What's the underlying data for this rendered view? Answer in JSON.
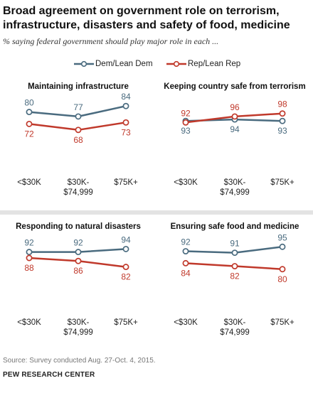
{
  "header": {
    "title": "Broad agreement on government role on terrorism, infrastructure, disasters and safety of food, medicine",
    "subtitle": "% saying federal government should play major role in each ..."
  },
  "legend": {
    "dem_label": "Dem/Lean Dem",
    "rep_label": "Rep/Lean Rep"
  },
  "colors": {
    "dem": "#4a6b7f",
    "rep": "#c0392b"
  },
  "chart_data": [
    {
      "type": "line",
      "title": "Maintaining infrastructure",
      "categories": [
        "<$30K",
        "$30K-\n$74,999",
        "$75K+"
      ],
      "series": [
        {
          "name": "Dem/Lean Dem",
          "values": [
            80,
            77,
            84
          ]
        },
        {
          "name": "Rep/Lean Rep",
          "values": [
            72,
            68,
            73
          ]
        }
      ]
    },
    {
      "type": "line",
      "title": "Keeping country safe from terrorism",
      "categories": [
        "<$30K",
        "$30K-\n$74,999",
        "$75K+"
      ],
      "series": [
        {
          "name": "Dem/Lean Dem",
          "values": [
            93,
            94,
            93
          ]
        },
        {
          "name": "Rep/Lean Rep",
          "values": [
            92,
            96,
            98
          ]
        }
      ]
    },
    {
      "type": "line",
      "title": "Responding to natural disasters",
      "categories": [
        "<$30K",
        "$30K-\n$74,999",
        "$75K+"
      ],
      "series": [
        {
          "name": "Dem/Lean Dem",
          "values": [
            92,
            92,
            94
          ]
        },
        {
          "name": "Rep/Lean Rep",
          "values": [
            88,
            86,
            82
          ]
        }
      ]
    },
    {
      "type": "line",
      "title": "Ensuring safe food and medicine",
      "categories": [
        "<$30K",
        "$30K-\n$74,999",
        "$75K+"
      ],
      "series": [
        {
          "name": "Dem/Lean Dem",
          "values": [
            92,
            91,
            95
          ]
        },
        {
          "name": "Rep/Lean Rep",
          "values": [
            84,
            82,
            80
          ]
        }
      ]
    }
  ],
  "footer": {
    "source": "Source: Survey conducted Aug. 27-Oct. 4, 2015.",
    "org": "PEW RESEARCH CENTER"
  }
}
